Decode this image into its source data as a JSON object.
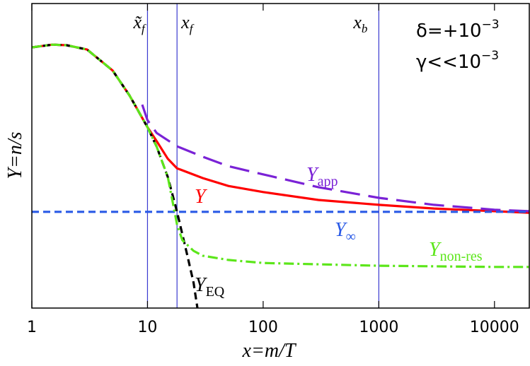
{
  "chart_data": {
    "type": "line",
    "xlabel": "x=m/T",
    "ylabel": "Y=n/s",
    "xscale": "log",
    "xlim": [
      1,
      20000
    ],
    "ylim": [
      0,
      1
    ],
    "xticks": [
      1,
      10,
      100,
      1000,
      10000
    ],
    "annotations": [
      {
        "text": "δ=+10",
        "sup": "−3"
      },
      {
        "text": "γ<<10",
        "sup": "−3"
      }
    ],
    "vlines": [
      {
        "x": 10,
        "label": "x̃",
        "sub": "f",
        "color": "#3a3ad0"
      },
      {
        "x": 18,
        "label": "x",
        "sub": "f",
        "color": "#3a3ad0"
      },
      {
        "x": 1000,
        "label": "x",
        "sub": "b",
        "color": "#3a3ad0"
      }
    ],
    "series": [
      {
        "name": "Y",
        "sub": "",
        "color": "#ff0000",
        "dash": "solid",
        "x": [
          1,
          1.5,
          2,
          3,
          5,
          7,
          10,
          12,
          15,
          18,
          30,
          50,
          100,
          300,
          1000,
          3000,
          10000,
          20000
        ],
        "values": [
          0.856,
          0.865,
          0.863,
          0.849,
          0.78,
          0.698,
          0.594,
          0.548,
          0.49,
          0.459,
          0.427,
          0.401,
          0.381,
          0.355,
          0.339,
          0.327,
          0.318,
          0.313
        ]
      },
      {
        "name": "Y",
        "sub": "EQ",
        "color": "#000000",
        "dash": "dashed",
        "x": [
          1,
          1.5,
          2,
          3,
          5,
          7,
          10,
          12,
          15,
          18,
          22,
          25,
          27
        ],
        "values": [
          0.856,
          0.865,
          0.863,
          0.849,
          0.78,
          0.698,
          0.594,
          0.53,
          0.43,
          0.316,
          0.176,
          0.084,
          0.0
        ]
      },
      {
        "name": "Y",
        "sub": "app",
        "color": "#7a22d6",
        "dash": "longdash",
        "x": [
          9,
          10,
          12,
          18,
          30,
          50,
          100,
          300,
          1000,
          3000,
          10000,
          20000
        ],
        "values": [
          0.668,
          0.617,
          0.575,
          0.531,
          0.497,
          0.466,
          0.439,
          0.397,
          0.362,
          0.339,
          0.323,
          0.318
        ]
      },
      {
        "name": "Y",
        "sub": "∞",
        "color": "#2a5ae6",
        "dash": "dashed",
        "x": [
          1,
          20000
        ],
        "values": [
          0.316,
          0.316
        ]
      },
      {
        "name": "Y",
        "sub": "non-res",
        "color": "#5ce61a",
        "dash": "dashdot",
        "x": [
          1,
          1.5,
          2,
          3,
          5,
          7,
          10,
          12,
          15,
          18,
          20,
          25,
          30,
          50,
          100,
          1000,
          10000,
          20000
        ],
        "values": [
          0.856,
          0.865,
          0.863,
          0.849,
          0.78,
          0.698,
          0.594,
          0.53,
          0.43,
          0.274,
          0.223,
          0.188,
          0.172,
          0.158,
          0.148,
          0.139,
          0.135,
          0.135
        ]
      }
    ]
  }
}
